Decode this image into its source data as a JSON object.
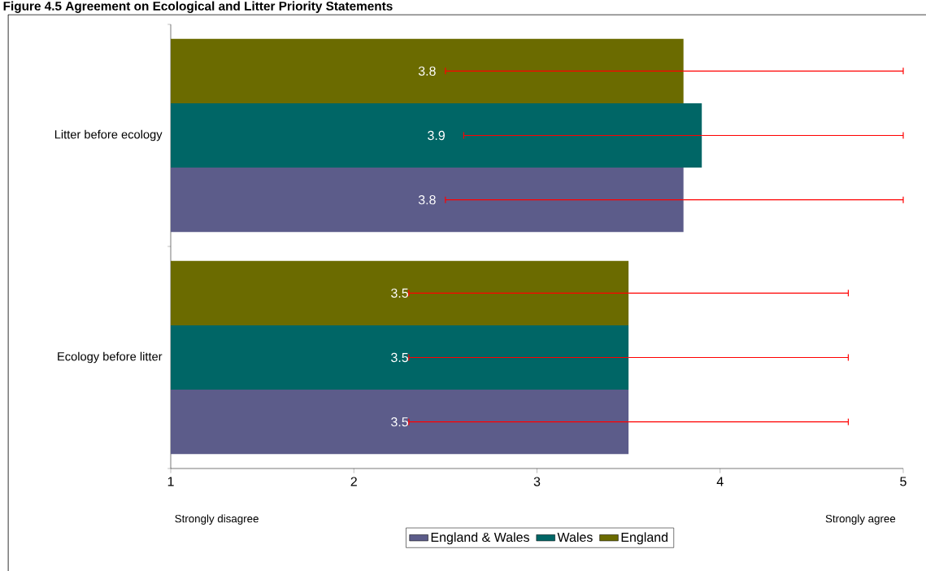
{
  "chart_data": {
    "type": "bar",
    "orientation": "horizontal",
    "title": "Figure 4.5 Agreement on Ecological and Litter Priority Statements",
    "categories": [
      "Litter before ecology",
      "Ecology before litter"
    ],
    "series": [
      {
        "name": "England & Wales",
        "color": "#5c5c8a",
        "values": [
          3.8,
          3.5
        ],
        "errors": [
          [
            2.5,
            5
          ],
          1.2
        ]
      },
      {
        "name": "Wales",
        "color": "#006666",
        "values": [
          3.9,
          3.5
        ],
        "errors": [
          [
            2.6,
            5
          ],
          1.2
        ]
      },
      {
        "name": "England",
        "color": "#6b6b00",
        "values": [
          3.8,
          3.5
        ],
        "errors": [
          [
            2.5,
            5
          ],
          1.2
        ]
      }
    ],
    "xlim": [
      1,
      5
    ],
    "xticks": [
      1,
      2,
      3,
      4,
      5
    ],
    "annotations": [
      "Strongly disagree",
      "Strongly agree"
    ],
    "data_labels": true,
    "legend": "bottom",
    "grid": false
  }
}
